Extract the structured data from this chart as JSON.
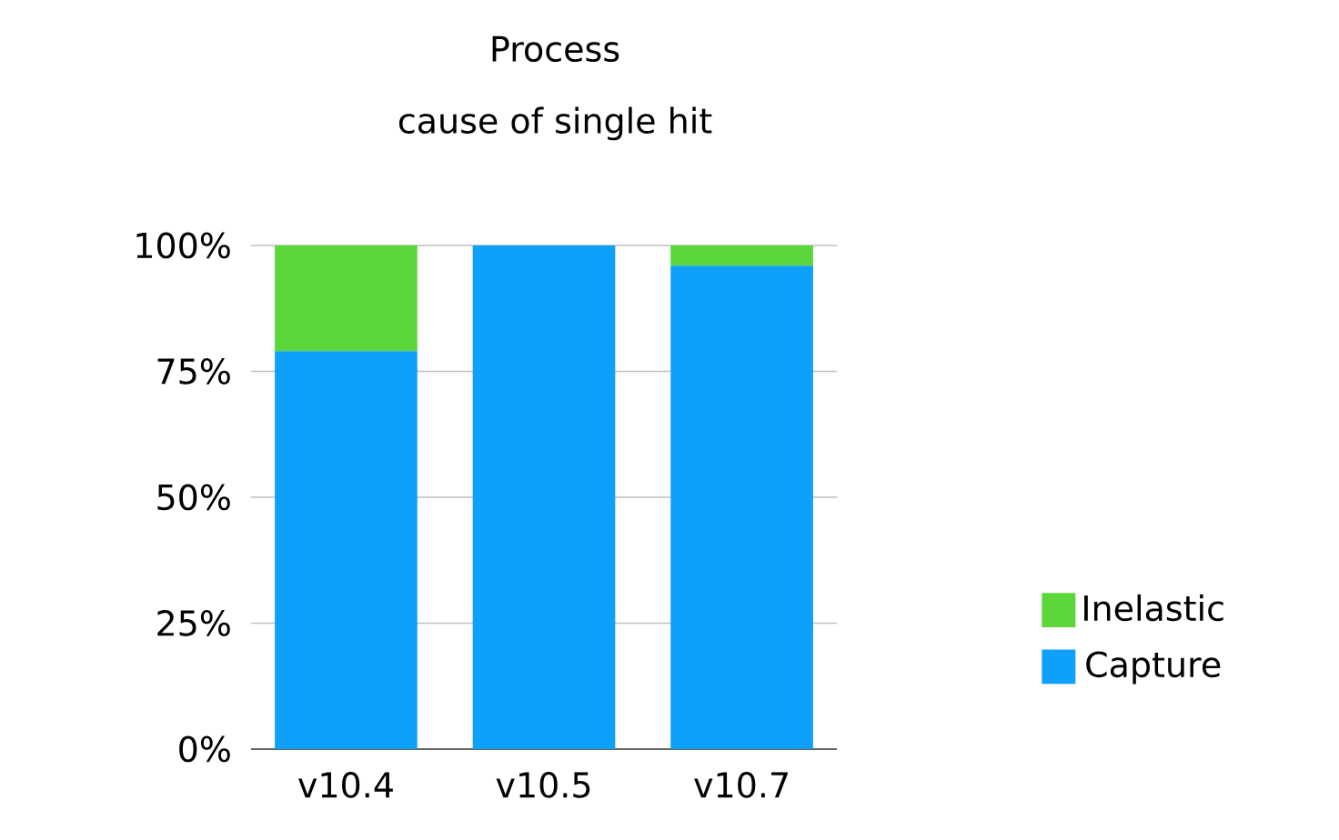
{
  "chart_data": {
    "type": "bar",
    "title": "Process",
    "subtitle": "cause of single hit",
    "categories": [
      "v10.4",
      "v10.5",
      "v10.7"
    ],
    "stacked": true,
    "series": [
      {
        "name": "Capture",
        "color": "#0ea0fa",
        "values": [
          79,
          100,
          96
        ]
      },
      {
        "name": "Inelastic",
        "color": "#5cd63a",
        "values": [
          21,
          0,
          4
        ]
      }
    ],
    "ylim": [
      0,
      100
    ],
    "yticks": [
      {
        "value": 0,
        "label": "0%"
      },
      {
        "value": 25,
        "label": "25%"
      },
      {
        "value": 50,
        "label": "50%"
      },
      {
        "value": 75,
        "label": "75%"
      },
      {
        "value": 100,
        "label": "100%"
      }
    ],
    "grid": "y",
    "legend": "right"
  }
}
